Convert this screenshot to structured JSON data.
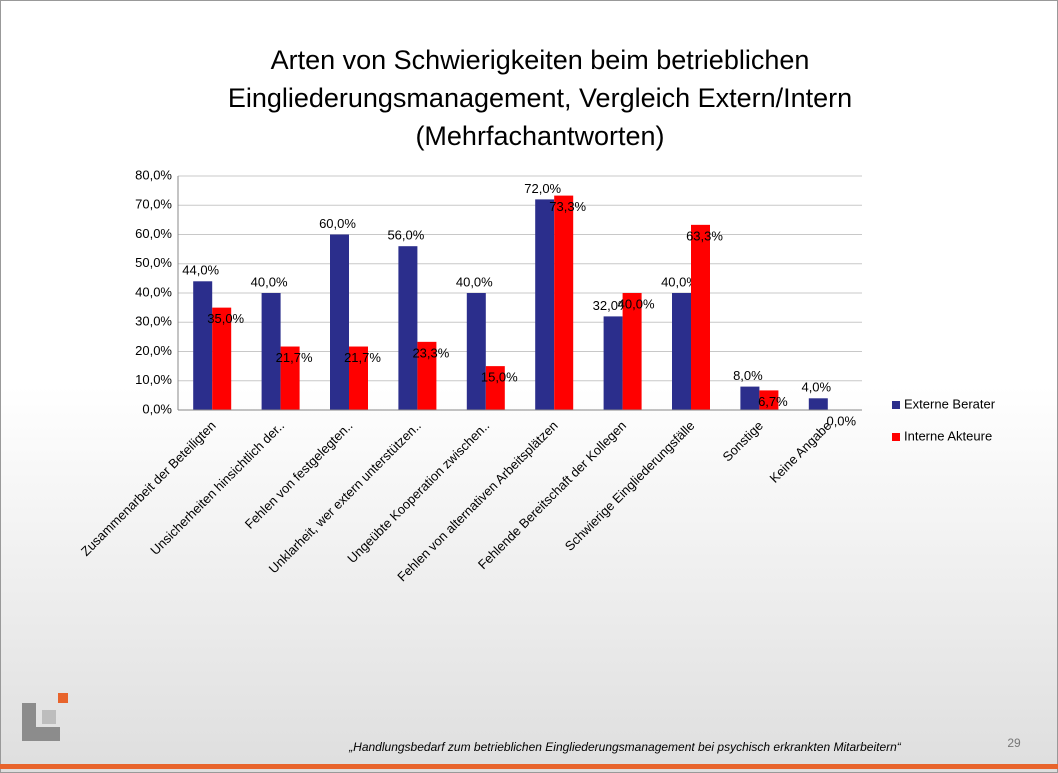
{
  "chart_data": {
    "type": "bar",
    "title": [
      "Arten von Schwierigkeiten beim betrieblichen",
      "Eingliederungsmanagement, Vergleich Extern/Intern",
      "(Mehrfachantworten)"
    ],
    "categories": [
      "Zusammenarbeit der Beteiligten",
      "Unsicherheiten hinsichtlich der..",
      "Fehlen von festgelegten..",
      "Unklarheit, wer extern unterstützen..",
      "Ungeübte Kooperation zwischen..",
      "Fehlen von alternativen Arbeitsplätzen",
      "Fehlende Bereitschaft der Kollegen",
      "Schwierige Eingliederungsfälle",
      "Sonstige",
      "Keine Angabe"
    ],
    "series": [
      {
        "name": "Externe Berater",
        "color": "#2b2e8c",
        "values": [
          44,
          40,
          60,
          56,
          40,
          72,
          32,
          40,
          8,
          4
        ],
        "value_labels": [
          "44,0%",
          "40,0%",
          "60,0%",
          "56,0%",
          "40,0%",
          "72,0%",
          "32,0%",
          "40,0%",
          "8,0%",
          "4,0%"
        ]
      },
      {
        "name": "Interne Akteure",
        "color": "#ff0000",
        "values": [
          35,
          21.7,
          21.7,
          23.3,
          15,
          73.3,
          40,
          63.3,
          6.7,
          0
        ],
        "value_labels": [
          "35,0%",
          "21,7%",
          "21,7%",
          "23,3%",
          "15,0%",
          "73,3%",
          "40,0%",
          "63,3%",
          "6,7%",
          "0,0%"
        ]
      }
    ],
    "ylim": [
      0,
      80
    ],
    "yticks": [
      {
        "value": 0,
        "label": "0,0%"
      },
      {
        "value": 10,
        "label": "10,0%"
      },
      {
        "value": 20,
        "label": "20,0%"
      },
      {
        "value": 30,
        "label": "30,0%"
      },
      {
        "value": 40,
        "label": "40,0%"
      },
      {
        "value": 50,
        "label": "50,0%"
      },
      {
        "value": 60,
        "label": "60,0%"
      },
      {
        "value": 70,
        "label": "70,0%"
      },
      {
        "value": 80,
        "label": "80,0%"
      }
    ],
    "grid": true,
    "legend": "right"
  },
  "footer": "„Handlungsbedarf zum betrieblichen Eingliederungsmanagement bei psychisch erkrankten Mitarbeitern“",
  "page_number": "29"
}
